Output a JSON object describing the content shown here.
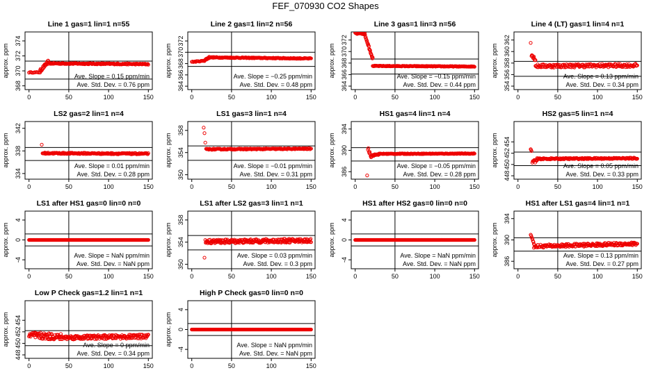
{
  "title": "FEF_070930  CO2 Shapes",
  "colors": {
    "points": "#ee0000",
    "axis": "#000000"
  },
  "chart_data": [
    {
      "type": "scatter",
      "title": "Line 1 gas=1 lin=1 n=55",
      "ylabel": "approx. ppm",
      "xlim": [
        -5,
        155
      ],
      "ylim": [
        367.5,
        375.2
      ],
      "xticks": [
        0,
        50,
        100,
        150
      ],
      "yticks": [
        368,
        370,
        372,
        374
      ],
      "hlines": [
        371.3,
        368.9
      ],
      "vline": 50,
      "ann1": "Ave. Slope =  0.15  ppm/min",
      "ann2": "Ave. Std. Dev. =  0.76  ppm",
      "segments": [
        {
          "x0": 0,
          "x1": 14,
          "y0": 369.8,
          "y1": 369.8,
          "jit": 0.05,
          "step": 1.2
        },
        {
          "x0": 14,
          "x1": 24,
          "y0": 370,
          "y1": 371.2,
          "jit": 0.2,
          "step": 0.5
        },
        {
          "x0": 24,
          "x1": 150,
          "y0": 371,
          "y1": 370.9,
          "jit": 0.08,
          "step": 0.7
        }
      ]
    },
    {
      "type": "scatter",
      "title": "Line 2 gas=1 lin=2 n=56",
      "ylabel": "approx. ppm",
      "xlim": [
        -5,
        155
      ],
      "ylim": [
        363.4,
        373.6
      ],
      "xticks": [
        0,
        50,
        100,
        150
      ],
      "yticks": [
        364,
        366,
        368,
        370,
        372
      ],
      "hlines": [
        370,
        367.5
      ],
      "vline": 50,
      "ann1": "Ave. Slope = −0.25  ppm/min",
      "ann2": "Ave. Std. Dev. =  0.48  ppm",
      "segments": [
        {
          "x0": 0,
          "x1": 16,
          "y0": 368.3,
          "y1": 368.5,
          "jit": 0.07,
          "step": 1
        },
        {
          "x0": 16,
          "x1": 22,
          "y0": 368.6,
          "y1": 369.1,
          "jit": 0.15,
          "step": 0.5
        },
        {
          "x0": 22,
          "x1": 150,
          "y0": 369.1,
          "y1": 368.9,
          "jit": 0.08,
          "step": 0.7
        }
      ]
    },
    {
      "type": "scatter",
      "title": "Line 3 gas=1 lin=3 n=56",
      "ylabel": "approx. ppm",
      "xlim": [
        -5,
        155
      ],
      "ylim": [
        363.4,
        373.4
      ],
      "xticks": [
        0,
        50,
        100,
        150
      ],
      "yticks": [
        364,
        366,
        368,
        370,
        372
      ],
      "hlines": [
        368.7,
        366.1
      ],
      "vline": 50,
      "ann1": "Ave. Slope = −0.15  ppm/min",
      "ann2": "Ave. Std. Dev. =  0.44  ppm",
      "segments": [
        {
          "x0": 0,
          "x1": 12,
          "y0": 373.2,
          "y1": 373.1,
          "jit": 0.15,
          "step": 0.6
        },
        {
          "x0": 12,
          "x1": 22,
          "y0": 373,
          "y1": 368.8,
          "jit": 0.2,
          "step": 0.4
        },
        {
          "x0": 22,
          "x1": 150,
          "y0": 367.5,
          "y1": 367.4,
          "jit": 0.06,
          "step": 0.7
        }
      ]
    },
    {
      "type": "scatter",
      "title": "Line 4 (LT) gas=1 lin=4 n=1",
      "ylabel": "approx. ppm",
      "xlim": [
        -5,
        155
      ],
      "ylim": [
        353.4,
        363.4
      ],
      "xticks": [
        0,
        50,
        100,
        150
      ],
      "yticks": [
        354,
        356,
        358,
        360,
        362
      ],
      "hlines": [
        358.3,
        355.7
      ],
      "vline": 50,
      "ann1": "Ave. Slope =  0.13  ppm/min",
      "ann2": "Ave. Std. Dev. =  0.34  ppm",
      "segments": [
        {
          "x0": 16,
          "x1": 16,
          "y0": 361.5,
          "y1": 361.5,
          "jit": 0,
          "step": 1
        },
        {
          "x0": 17,
          "x1": 22,
          "y0": 359.5,
          "y1": 358.6,
          "jit": 0.3,
          "step": 0.5
        },
        {
          "x0": 22,
          "x1": 150,
          "y0": 357.5,
          "y1": 357.6,
          "jit": 0.3,
          "step": 0.7
        }
      ]
    },
    {
      "type": "scatter",
      "title": "LS2 gas=2 lin=1 n=4",
      "ylabel": "approx. ppm",
      "xlim": [
        -5,
        155
      ],
      "ylim": [
        333,
        343.2
      ],
      "xticks": [
        0,
        50,
        100,
        150
      ],
      "yticks": [
        334,
        338,
        342
      ],
      "hlines": [
        338.6,
        336.3
      ],
      "vline": 50,
      "ann1": "Ave. Slope =  0.01  ppm/min",
      "ann2": "Ave. Std. Dev. =  0.28  ppm",
      "segments": [
        {
          "x0": 16,
          "x1": 16,
          "y0": 339.1,
          "y1": 339.1,
          "jit": 0,
          "step": 1
        },
        {
          "x0": 17,
          "x1": 150,
          "y0": 337.6,
          "y1": 337.5,
          "jit": 0.12,
          "step": 0.7
        }
      ]
    },
    {
      "type": "scatter",
      "title": "LS1 gas=3 lin=1 n=4",
      "ylabel": "approx. ppm",
      "xlim": [
        -5,
        155
      ],
      "ylim": [
        349.2,
        359.6
      ],
      "xticks": [
        0,
        50,
        100,
        150
      ],
      "yticks": [
        350,
        354,
        358
      ],
      "hlines": [
        355.2,
        352.6
      ],
      "vline": 50,
      "ann1": "Ave. Slope = −0.01  ppm/min",
      "ann2": "Ave. Std. Dev. =  0.31  ppm",
      "segments": [
        {
          "x0": 15,
          "x1": 15,
          "y0": 358.5,
          "y1": 358.5,
          "jit": 0,
          "step": 1
        },
        {
          "x0": 16,
          "x1": 16,
          "y0": 357.5,
          "y1": 357.5,
          "jit": 0,
          "step": 1
        },
        {
          "x0": 17,
          "x1": 17,
          "y0": 355.8,
          "y1": 355.8,
          "jit": 0,
          "step": 1
        },
        {
          "x0": 18,
          "x1": 150,
          "y0": 354.6,
          "y1": 354.7,
          "jit": 0.1,
          "step": 0.7
        }
      ]
    },
    {
      "type": "scatter",
      "title": "HS1 gas=4 lin=1 n=4",
      "ylabel": "approx. ppm",
      "xlim": [
        -5,
        155
      ],
      "ylim": [
        384.6,
        395.4
      ],
      "xticks": [
        0,
        50,
        100,
        150
      ],
      "yticks": [
        386,
        390,
        394
      ],
      "hlines": [
        390.5,
        388
      ],
      "vline": 50,
      "ann1": "Ave. Slope = −0.05  ppm/min",
      "ann2": "Ave. Std. Dev. =  0.28  ppm",
      "segments": [
        {
          "x0": 15,
          "x1": 15,
          "y0": 385.3,
          "y1": 385.3,
          "jit": 0,
          "step": 1
        },
        {
          "x0": 16,
          "x1": 20,
          "y0": 390.3,
          "y1": 389,
          "jit": 0.35,
          "step": 0.6
        },
        {
          "x0": 20,
          "x1": 30,
          "y0": 389,
          "y1": 389.3,
          "jit": 0.15,
          "step": 0.6
        },
        {
          "x0": 30,
          "x1": 150,
          "y0": 389.35,
          "y1": 389.4,
          "jit": 0.07,
          "step": 0.7
        }
      ]
    },
    {
      "type": "scatter",
      "title": "HS2 gas=5 lin=1 n=4",
      "ylabel": "approx. ppm",
      "xlim": [
        -5,
        155
      ],
      "ylim": [
        447.4,
        457.6
      ],
      "xticks": [
        0,
        50,
        100,
        150
      ],
      "yticks": [
        448,
        450,
        452,
        454
      ],
      "hlines": [
        452.2,
        449.8
      ],
      "vline": 50,
      "ann1": "Ave. Slope =  0.05  ppm/min",
      "ann2": "Ave. Std. Dev. =  0.33  ppm",
      "segments": [
        {
          "x0": 16,
          "x1": 17,
          "y0": 452.8,
          "y1": 452.3,
          "jit": 0.1,
          "step": 0.6
        },
        {
          "x0": 18,
          "x1": 24,
          "y0": 450.5,
          "y1": 450.7,
          "jit": 0.3,
          "step": 0.6
        },
        {
          "x0": 24,
          "x1": 150,
          "y0": 451,
          "y1": 451.1,
          "jit": 0.12,
          "step": 0.7
        }
      ]
    },
    {
      "type": "scatter",
      "title": "LS1 after HS1 gas=0 lin=0 n=0",
      "ylabel": "approx. ppm",
      "xlim": [
        -5,
        155
      ],
      "ylim": [
        -5.8,
        5.8
      ],
      "xticks": [
        0,
        50,
        100,
        150
      ],
      "yticks": [
        -4,
        0,
        4
      ],
      "hlines": [
        1.2,
        -1.2
      ],
      "vline": 50,
      "ann1": "Ave. Slope =  NaN  ppm/min",
      "ann2": "Ave. Std. Dev. =  NaN  ppm",
      "segments": [
        {
          "x0": 0,
          "x1": 150,
          "y0": 0,
          "y1": 0,
          "jit": 0,
          "step": 0.7
        }
      ]
    },
    {
      "type": "scatter",
      "title": "LS1 after LS2 gas=3 lin=1 n=1",
      "ylabel": "approx. ppm",
      "xlim": [
        -5,
        155
      ],
      "ylim": [
        349.2,
        359.6
      ],
      "xticks": [
        0,
        50,
        100,
        150
      ],
      "yticks": [
        350,
        354,
        358
      ],
      "hlines": [
        355.2,
        352.6
      ],
      "vline": 50,
      "ann1": "Ave. Slope =  0.03  ppm/min",
      "ann2": "Ave. Std. Dev. =  0.3  ppm",
      "segments": [
        {
          "x0": 16,
          "x1": 16,
          "y0": 351.2,
          "y1": 351.2,
          "jit": 0,
          "step": 1
        },
        {
          "x0": 17,
          "x1": 150,
          "y0": 354.1,
          "y1": 354.3,
          "jit": 0.35,
          "step": 0.5
        }
      ]
    },
    {
      "type": "scatter",
      "title": "HS1 after HS2 gas=0 lin=0 n=0",
      "ylabel": "approx. ppm",
      "xlim": [
        -5,
        155
      ],
      "ylim": [
        -5.8,
        5.8
      ],
      "xticks": [
        0,
        50,
        100,
        150
      ],
      "yticks": [
        -4,
        0,
        4
      ],
      "hlines": [
        1.2,
        -1.2
      ],
      "vline": 50,
      "ann1": "Ave. Slope =  NaN  ppm/min",
      "ann2": "Ave. Std. Dev. =  NaN  ppm",
      "segments": [
        {
          "x0": 0,
          "x1": 150,
          "y0": 0,
          "y1": 0,
          "jit": 0,
          "step": 0.7
        }
      ]
    },
    {
      "type": "scatter",
      "title": "HS1 after LS1 gas=4 lin=1 n=1",
      "ylabel": "approx. ppm",
      "xlim": [
        -5,
        155
      ],
      "ylim": [
        384.6,
        395.4
      ],
      "xticks": [
        0,
        50,
        100,
        150
      ],
      "yticks": [
        386,
        390,
        394
      ],
      "hlines": [
        390.4,
        387.9
      ],
      "vline": 50,
      "ann1": "Ave. Slope =  0.13  ppm/min",
      "ann2": "Ave. Std. Dev. =  0.27  ppm",
      "segments": [
        {
          "x0": 16,
          "x1": 20,
          "y0": 390.8,
          "y1": 389.5,
          "jit": 0.3,
          "step": 0.6
        },
        {
          "x0": 20,
          "x1": 150,
          "y0": 388.8,
          "y1": 389.3,
          "jit": 0.3,
          "step": 0.6
        }
      ]
    },
    {
      "type": "scatter",
      "title": "Low P Check gas=1.2 lin=1 n=1",
      "ylabel": "approx. ppm",
      "xlim": [
        -5,
        155
      ],
      "ylim": [
        447.4,
        457.4
      ],
      "xticks": [
        0,
        50,
        100,
        150
      ],
      "yticks": [
        448,
        450,
        452,
        454
      ],
      "hlines": [
        452.2,
        449.6
      ],
      "vline": 50,
      "ann1": "Ave. Slope =  0  ppm/min",
      "ann2": "Ave. Std. Dev. =  0.34  ppm",
      "segments": [
        {
          "x0": 0,
          "x1": 40,
          "y0": 451.4,
          "y1": 451.1,
          "jit": 0.55,
          "step": 0.5
        },
        {
          "x0": 40,
          "x1": 150,
          "y0": 451,
          "y1": 451.2,
          "jit": 0.35,
          "step": 0.6
        }
      ]
    },
    {
      "type": "scatter",
      "title": "High P Check gas=0 lin=0 n=0",
      "ylabel": "approx. ppm",
      "xlim": [
        -5,
        155
      ],
      "ylim": [
        -5.8,
        5.8
      ],
      "xticks": [
        0,
        50,
        100,
        150
      ],
      "yticks": [
        -4,
        0,
        4
      ],
      "hlines": [
        1.2,
        -1.2
      ],
      "vline": 50,
      "ann1": "Ave. Slope =  NaN  ppm/min",
      "ann2": "Ave. Std. Dev. =  NaN  ppm",
      "segments": [
        {
          "x0": 0,
          "x1": 150,
          "y0": 0,
          "y1": 0,
          "jit": 0,
          "step": 0.7
        }
      ]
    }
  ]
}
